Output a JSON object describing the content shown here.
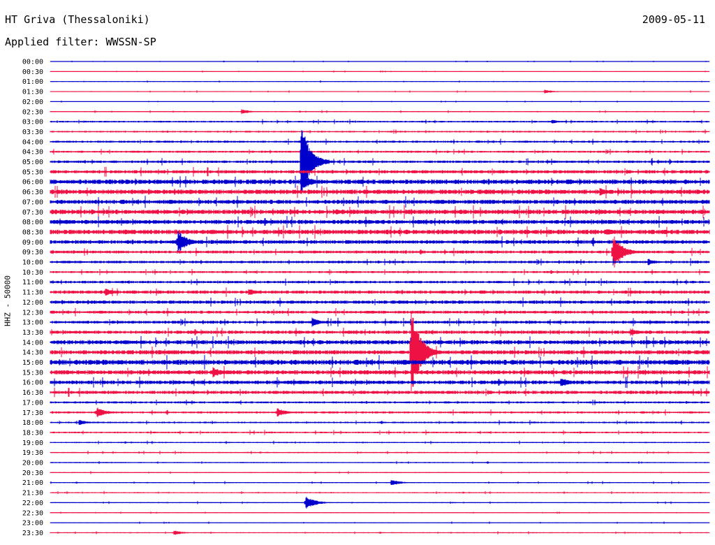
{
  "header": {
    "station": "HT Griva (Thessaloniki)",
    "date": "2009-05-11",
    "filter": "Applied filter: WWSSN-SP"
  },
  "channel_label": "HHZ - 50000",
  "colors": {
    "odd_trace": "#0000cc",
    "even_trace": "#ee1144",
    "background": "#ffffff"
  },
  "chart_data": {
    "type": "line",
    "subtype": "helicorder",
    "title": "HT Griva (Thessaloniki)",
    "ylabel": "HHZ - 50000",
    "row_labels": [
      "00:00",
      "00:30",
      "01:00",
      "01:30",
      "02:00",
      "02:30",
      "03:00",
      "03:30",
      "04:00",
      "04:30",
      "05:00",
      "05:30",
      "06:00",
      "06:30",
      "07:00",
      "07:30",
      "08:00",
      "08:30",
      "09:00",
      "09:30",
      "10:00",
      "10:30",
      "11:00",
      "11:30",
      "12:00",
      "12:30",
      "13:00",
      "13:30",
      "14:00",
      "14:30",
      "15:00",
      "15:30",
      "16:00",
      "16:30",
      "17:00",
      "17:30",
      "18:00",
      "18:30",
      "19:00",
      "19:30",
      "20:00",
      "20:30",
      "21:00",
      "21:30",
      "22:00",
      "22:30",
      "23:00",
      "23:30"
    ],
    "row_minutes": 30,
    "noise_levels": [
      0.3,
      0.3,
      0.4,
      0.4,
      0.3,
      0.5,
      0.8,
      0.8,
      1.0,
      1.0,
      1.2,
      1.6,
      2.2,
      2.2,
      2.0,
      2.2,
      2.0,
      2.2,
      1.8,
      1.4,
      1.2,
      1.0,
      1.2,
      1.6,
      1.6,
      1.4,
      1.4,
      1.6,
      2.0,
      2.0,
      2.4,
      2.0,
      1.8,
      1.6,
      1.0,
      1.0,
      0.8,
      0.8,
      0.6,
      0.6,
      0.5,
      0.5,
      0.5,
      0.5,
      0.5,
      0.4,
      0.4,
      0.5
    ],
    "events": [
      {
        "row": 3,
        "minute": 22.5,
        "amplitude": 3
      },
      {
        "row": 5,
        "minute": 8.7,
        "amplitude": 4
      },
      {
        "row": 6,
        "minute": 22.8,
        "amplitude": 3
      },
      {
        "row": 10,
        "minute": 11.4,
        "amplitude": 60
      },
      {
        "row": 12,
        "minute": 11.4,
        "amplitude": 15
      },
      {
        "row": 13,
        "minute": 25.0,
        "amplitude": 6
      },
      {
        "row": 15,
        "minute": 13.0,
        "amplitude": 5
      },
      {
        "row": 17,
        "minute": 25.3,
        "amplitude": 6
      },
      {
        "row": 18,
        "minute": 5.8,
        "amplitude": 18
      },
      {
        "row": 19,
        "minute": 25.6,
        "amplitude": 28
      },
      {
        "row": 20,
        "minute": 27.2,
        "amplitude": 5
      },
      {
        "row": 23,
        "minute": 9.0,
        "amplitude": 6
      },
      {
        "row": 23,
        "minute": 2.5,
        "amplitude": 6
      },
      {
        "row": 26,
        "minute": 11.9,
        "amplitude": 7
      },
      {
        "row": 27,
        "minute": 26.4,
        "amplitude": 6
      },
      {
        "row": 29,
        "minute": 16.4,
        "amplitude": 70
      },
      {
        "row": 31,
        "minute": 7.4,
        "amplitude": 8
      },
      {
        "row": 32,
        "minute": 23.2,
        "amplitude": 8
      },
      {
        "row": 35,
        "minute": 2.1,
        "amplitude": 9
      },
      {
        "row": 35,
        "minute": 10.3,
        "amplitude": 7
      },
      {
        "row": 36,
        "minute": 1.3,
        "amplitude": 4
      },
      {
        "row": 42,
        "minute": 15.5,
        "amplitude": 5
      },
      {
        "row": 44,
        "minute": 11.6,
        "amplitude": 11
      },
      {
        "row": 47,
        "minute": 5.6,
        "amplitude": 4
      }
    ]
  }
}
